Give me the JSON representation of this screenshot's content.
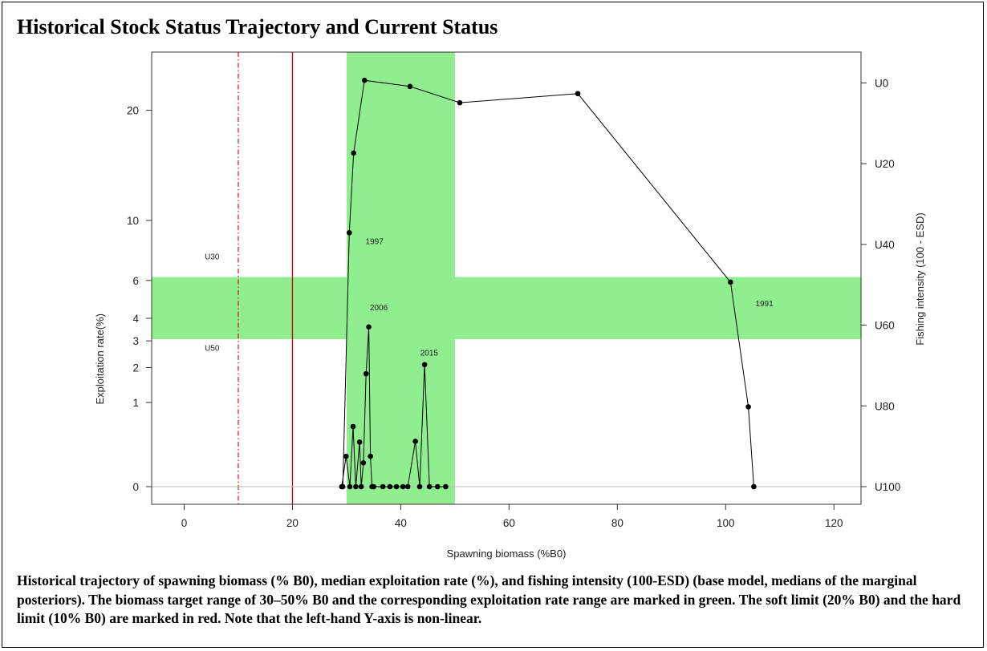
{
  "title": "Historical Stock Status Trajectory and Current Status",
  "caption": "Historical trajectory of spawning biomass (% B0), median exploitation rate (%), and fishing intensity (100-ESD) (base model, medians of the marginal posteriors). The biomass target range of 30–50% B0 and the corresponding exploitation rate range are marked in green. The soft limit (20% B0) and the hard limit (10% B0) are marked in red. Note that the left-hand Y-axis is non-linear.",
  "colors": {
    "target_band": "#90ee90",
    "soft_limit": "#cc0000",
    "hard_limit": "#cc0000",
    "trajectory": "#000000",
    "zero_line": "#bbbbbb"
  },
  "chart_data": {
    "type": "line",
    "title": "",
    "xlabel": "Spawning biomass (%B0)",
    "ylabel": "Exploitation rate(%)",
    "ylabel_right": "Fishing intensity (100 - ESD)",
    "xlim": [
      -6,
      125
    ],
    "x_ticks": [
      0,
      20,
      40,
      60,
      80,
      100,
      120
    ],
    "y_ticks": [
      0,
      1,
      2,
      3,
      4,
      6,
      10,
      20
    ],
    "y_scale": "non-linear (square-root)",
    "right_ticks": [
      "U0",
      "U20",
      "U40",
      "U60",
      "U80",
      "U100"
    ],
    "target_biomass_range": [
      30,
      50
    ],
    "target_exploitation_range": [
      3.07,
      6.2
    ],
    "soft_limit": 20,
    "hard_limit": 10,
    "band_labels": [
      {
        "text": "U30",
        "x": 3.8,
        "y": 7.3
      },
      {
        "text": "U50",
        "x": 3.8,
        "y": 2.6
      }
    ],
    "annotations": [
      {
        "text": "1991",
        "x": 105.5,
        "y": 4.6
      },
      {
        "text": "1997",
        "x": 33.5,
        "y": 8.3
      },
      {
        "text": "2006",
        "x": 34.3,
        "y": 4.4
      },
      {
        "text": "2015",
        "x": 43.6,
        "y": 2.42
      }
    ],
    "x": [
      105.2,
      104.2,
      100.9,
      72.7,
      50.9,
      41.7,
      33.3,
      31.3,
      30.5,
      29.3,
      29.1,
      29.9,
      30.6,
      31.2,
      31.7,
      32.4,
      32.7,
      33.1,
      33.6,
      34.1,
      34.4,
      34.7,
      35.0,
      36.7,
      38.0,
      39.2,
      40.4,
      41.3,
      42.7,
      43.5,
      44.4,
      45.3,
      46.8,
      48.3
    ],
    "y": [
      0.0,
      0.9,
      5.9,
      21.8,
      20.8,
      22.6,
      23.3,
      15.7,
      9.1,
      0.0,
      0.0,
      0.13,
      0.0,
      0.51,
      0.0,
      0.28,
      0.0,
      0.08,
      1.8,
      3.6,
      0.13,
      0.0,
      0.0,
      0.0,
      0.0,
      0.0,
      0.0,
      0.0,
      0.29,
      0.0,
      2.1,
      0.0,
      0.0,
      0.0
    ]
  }
}
